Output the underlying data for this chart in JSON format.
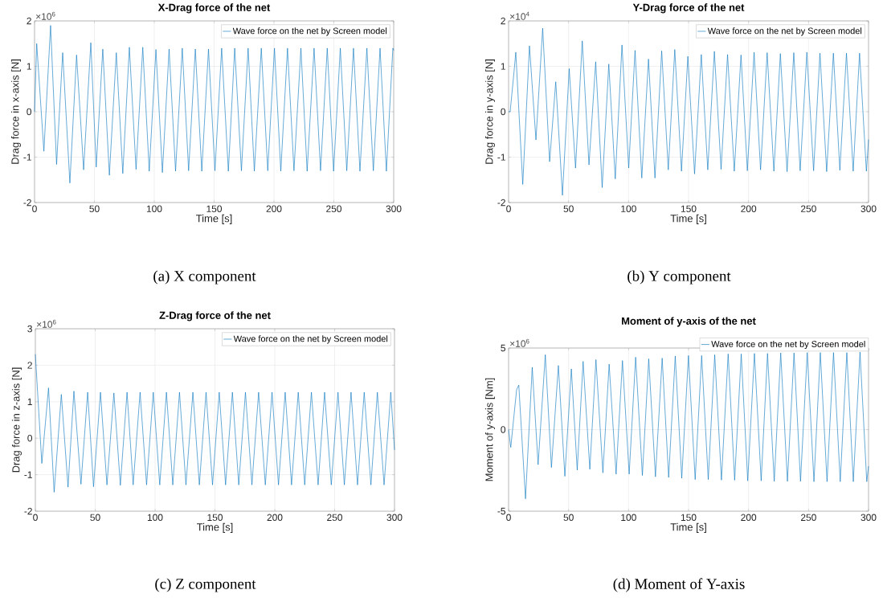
{
  "chart_data": [
    {
      "type": "line",
      "title": "X-Drag force of the net",
      "xlabel": "Time [s]",
      "ylabel": "Drag force in x-axis [N]",
      "legend": "top right",
      "grid": true,
      "xlim": [
        0,
        300
      ],
      "ylim": [
        -2,
        2
      ],
      "xticks": [
        0,
        50,
        100,
        150,
        200,
        250,
        300
      ],
      "yticks": [
        -2,
        -1,
        0,
        1,
        2
      ],
      "annotations": [
        "×10$^{6}$",
        "(a)  X component"
      ],
      "x": [
        0,
        1.8,
        7.8,
        13.4,
        18.4,
        23.5,
        29.5,
        35.1,
        41,
        47,
        51.5,
        57,
        62.5,
        68.3,
        73.7,
        79.2,
        84.8,
        90.4,
        95.8,
        101.4,
        106.8,
        112.4,
        117.8,
        123.4,
        128.7,
        134.3,
        139.7,
        145.3,
        150.7,
        156.3,
        161.9,
        167.2,
        172.8,
        178.4,
        183.6,
        189.4,
        194.8,
        200.4,
        205.7,
        211.3,
        216.7,
        222.5,
        227.7,
        233.5,
        238.9,
        244.5,
        249.8,
        255.4,
        260.8,
        266.4,
        271.8,
        277.6,
        283,
        288.6,
        293.9,
        299.3,
        300
      ],
      "series": [
        {
          "name": "Wave force on the net by Screen model",
          "color": "#0072bd",
          "values": [
            0,
            1.5,
            -0.87,
            1.9,
            -1.16,
            1.3,
            -1.57,
            1.25,
            -1.28,
            1.52,
            -1.22,
            1.38,
            -1.4,
            1.3,
            -1.36,
            1.42,
            -1.27,
            1.42,
            -1.31,
            1.37,
            -1.34,
            1.38,
            -1.31,
            1.4,
            -1.3,
            1.38,
            -1.31,
            1.38,
            -1.3,
            1.4,
            -1.31,
            1.4,
            -1.3,
            1.4,
            -1.31,
            1.4,
            -1.3,
            1.4,
            -1.31,
            1.4,
            -1.3,
            1.4,
            -1.31,
            1.4,
            -1.3,
            1.4,
            -1.31,
            1.4,
            -1.3,
            1.4,
            -1.31,
            1.4,
            -1.3,
            1.4,
            -1.31,
            1.4,
            1.35
          ]
        }
      ]
    },
    {
      "type": "line",
      "title": "Y-Drag force of the net",
      "xlabel": "Time [s]",
      "ylabel": "Drag force in y-axis [N]",
      "legend": "top right",
      "grid": true,
      "xlim": [
        0,
        300
      ],
      "ylim": [
        -2,
        2
      ],
      "xticks": [
        0,
        50,
        100,
        150,
        200,
        250,
        300
      ],
      "yticks": [
        -2,
        -1,
        0,
        1,
        2
      ],
      "annotations": [
        "×10$^{4}$",
        "(b)  Y component"
      ],
      "x": [
        0,
        1.3,
        4.5,
        6,
        11.8,
        17.4,
        22.8,
        28.4,
        34.2,
        39.3,
        44.9,
        50.5,
        55.8,
        61.4,
        67,
        72.6,
        78,
        83.5,
        88.9,
        94.5,
        100.1,
        105.4,
        111,
        116.6,
        122,
        127.6,
        133.1,
        138.5,
        144.1,
        149.4,
        155,
        160.6,
        166,
        171.5,
        177.1,
        182.5,
        188.1,
        193.7,
        199,
        204.6,
        210,
        215.5,
        221.1,
        226.5,
        232.1,
        237.7,
        243,
        248.6,
        254.2,
        259.5,
        265.1,
        270.7,
        276.1,
        281.6,
        287.2,
        292.5,
        298.2,
        300
      ],
      "series": [
        {
          "name": "Wave force on the net by Screen model",
          "color": "#0072bd",
          "values": [
            0,
            0,
            0.87,
            1.31,
            -1.6,
            1.45,
            -0.62,
            1.84,
            -1.1,
            0.66,
            -1.84,
            0.95,
            -1.24,
            1.56,
            -1.17,
            1.1,
            -1.67,
            1.05,
            -1.48,
            1.47,
            -1.24,
            1.35,
            -1.46,
            1.16,
            -1.46,
            1.34,
            -1.28,
            1.37,
            -1.31,
            1.22,
            -1.37,
            1.26,
            -1.28,
            1.33,
            -1.27,
            1.26,
            -1.31,
            1.25,
            -1.3,
            1.31,
            -1.28,
            1.3,
            -1.31,
            1.28,
            -1.32,
            1.3,
            -1.3,
            1.31,
            -1.3,
            1.29,
            -1.32,
            1.29,
            -1.29,
            1.29,
            -1.31,
            1.29,
            -1.31,
            -0.61
          ]
        }
      ]
    },
    {
      "type": "line",
      "title": "Z-Drag force of the net",
      "xlabel": "Time [s]",
      "ylabel": "Drag force in z-axis [N]",
      "legend": "top right",
      "grid": true,
      "xlim": [
        0,
        300
      ],
      "ylim": [
        -2,
        3
      ],
      "xticks": [
        0,
        50,
        100,
        150,
        200,
        250,
        300
      ],
      "yticks": [
        -2,
        -1,
        0,
        1,
        2,
        3
      ],
      "annotations": [
        "×10$^{6}$",
        "(c)  Z component"
      ],
      "x": [
        0,
        5.4,
        11,
        15.7,
        21.7,
        27.3,
        32.2,
        38.1,
        43.7,
        48.6,
        54.4,
        59.8,
        65.6,
        71,
        76.6,
        81.7,
        87.5,
        92.9,
        98.5,
        103.9,
        109.5,
        114.8,
        120.4,
        125.8,
        131.6,
        137,
        142.6,
        148,
        153.6,
        158.9,
        164.6,
        169.9,
        175.5,
        180.9,
        186.5,
        192.1,
        197.7,
        203.1,
        208.7,
        214,
        219.6,
        225,
        230.6,
        236.2,
        241.6,
        247.2,
        252.8,
        258.1,
        263.7,
        269.1,
        274.7,
        280.3,
        285.7,
        291.3,
        296.9,
        300
      ],
      "series": [
        {
          "name": "Wave force on the net by Screen model",
          "color": "#0072bd",
          "values": [
            2.3,
            -0.69,
            1.38,
            -1.48,
            1.2,
            -1.34,
            1.29,
            -1.26,
            1.26,
            -1.33,
            1.26,
            -1.28,
            1.24,
            -1.29,
            1.26,
            -1.28,
            1.26,
            -1.28,
            1.26,
            -1.28,
            1.26,
            -1.28,
            1.26,
            -1.28,
            1.26,
            -1.28,
            1.26,
            -1.28,
            1.26,
            -1.28,
            1.26,
            -1.28,
            1.26,
            -1.28,
            1.26,
            -1.28,
            1.26,
            -1.28,
            1.26,
            -1.28,
            1.26,
            -1.28,
            1.26,
            -1.28,
            1.26,
            -1.28,
            1.26,
            -1.28,
            1.26,
            -1.28,
            1.26,
            -1.28,
            1.26,
            -1.28,
            1.26,
            -0.32
          ]
        }
      ]
    },
    {
      "type": "line",
      "title": "Moment of y-axis of the net",
      "xlabel": "Time [s]",
      "ylabel": "Moment of y-axis [Nm]",
      "legend": "top right",
      "grid": true,
      "xlim": [
        0,
        300
      ],
      "ylim": [
        -5,
        5
      ],
      "xticks": [
        0,
        50,
        100,
        150,
        200,
        250,
        300
      ],
      "yticks": [
        -5,
        0,
        5
      ],
      "annotations": [
        "×10$^{6}$",
        "(d)  Moment of Y-axis"
      ],
      "x": [
        0,
        1.8,
        6.7,
        8.5,
        14.1,
        19.7,
        24.6,
        30.6,
        35.7,
        41.5,
        46.9,
        52.3,
        57.2,
        62.1,
        67.7,
        72.8,
        78.6,
        83.8,
        89.6,
        94.9,
        100.5,
        105.9,
        111.5,
        116.8,
        122.4,
        128,
        133.4,
        138.9,
        144.3,
        149.9,
        155.5,
        160.9,
        166.4,
        171.8,
        177.4,
        183,
        188.4,
        193.9,
        199.3,
        204.9,
        210.5,
        215.8,
        221.4,
        226.8,
        232.4,
        237.9,
        243.3,
        248.9,
        254.5,
        259.8,
        265.4,
        270.8,
        276.4,
        281.9,
        287.3,
        292.9,
        298.5,
        300
      ],
      "series": [
        {
          "name": "Wave force on the net by Screen model",
          "color": "#0072bd",
          "values": [
            0,
            -1.09,
            2.45,
            2.73,
            -4.24,
            3.82,
            -2.15,
            4.59,
            -2.32,
            3.93,
            -2.86,
            3.72,
            -2.48,
            4.18,
            -2.43,
            4.29,
            -2.65,
            4.01,
            -2.73,
            4.23,
            -2.73,
            4.44,
            -2.81,
            4.34,
            -2.89,
            4.38,
            -2.93,
            4.51,
            -2.98,
            4.54,
            -3.06,
            4.54,
            -3.06,
            4.59,
            -3.09,
            4.64,
            -3.1,
            4.64,
            -3.14,
            4.67,
            -3.14,
            4.67,
            -3.17,
            4.7,
            -3.17,
            4.7,
            -3.17,
            4.72,
            -3.19,
            4.72,
            -3.19,
            4.72,
            -3.19,
            4.72,
            -3.19,
            4.75,
            -3.19,
            -2.24
          ]
        }
      ]
    }
  ]
}
